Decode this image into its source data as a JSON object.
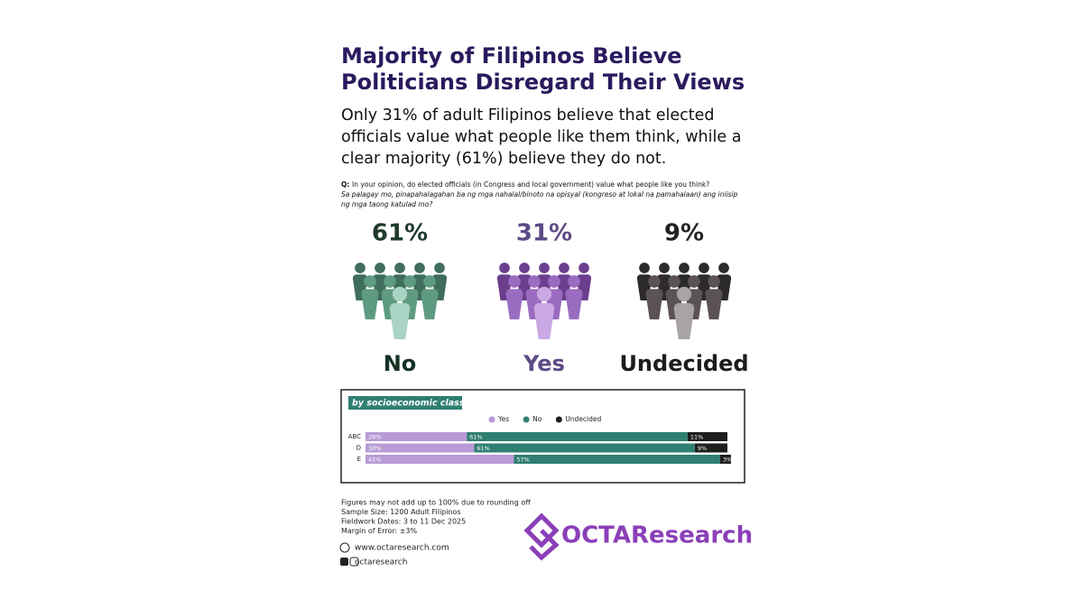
{
  "title": "Majority of Filipinos Believe Politicians Disregard Their Views",
  "subtitle": "Only 31% of adult Filipinos believe that elected officials value what people like them think, while a clear majority (61%) believe they do not.",
  "question": {
    "prefix": "Q:",
    "english": "In your opinion, do elected officials (in Congress and local government) value what people like you think?",
    "filipino": "Sa palagay mo, pinapahalagahan ba ng mga nahalal/binoto na opisyal (kongreso at lokal na pamahalaan) ang iniisip ng mga taong katulad mo?"
  },
  "headline": [
    {
      "percent": "61%",
      "label": "No"
    },
    {
      "percent": "31%",
      "label": "Yes"
    },
    {
      "percent": "9%",
      "label": "Undecided"
    }
  ],
  "chart_data": {
    "type": "stacked-bar-horizontal",
    "title": "by socioeconomic class",
    "categories": [
      "ABC",
      "D",
      "E"
    ],
    "series": [
      {
        "name": "Yes",
        "color": "#b89bd6",
        "values": [
          28,
          30,
          41
        ],
        "value_labels": [
          "28%",
          "30%",
          "41%"
        ]
      },
      {
        "name": "No",
        "color": "#2f7f72",
        "values": [
          61,
          61,
          57
        ],
        "value_labels": [
          "61%",
          "61%",
          "57%"
        ]
      },
      {
        "name": "Undecided",
        "color": "#1e1e1e",
        "values": [
          11,
          9,
          3
        ],
        "value_labels": [
          "11%",
          "9%",
          "3%"
        ]
      }
    ],
    "xlim": [
      0,
      101
    ]
  },
  "footer": {
    "notes": [
      "Figures may not add up to 100% due to rounding off",
      "Sample Size: 1200 Adult Filipinos",
      "Fieldwork Dates: 3 to 11 Dec 2025",
      "Margin of Error: ±3%"
    ],
    "website": "www.octaresearch.com",
    "social": "octaresearch",
    "logo": "OCTAResearch"
  }
}
